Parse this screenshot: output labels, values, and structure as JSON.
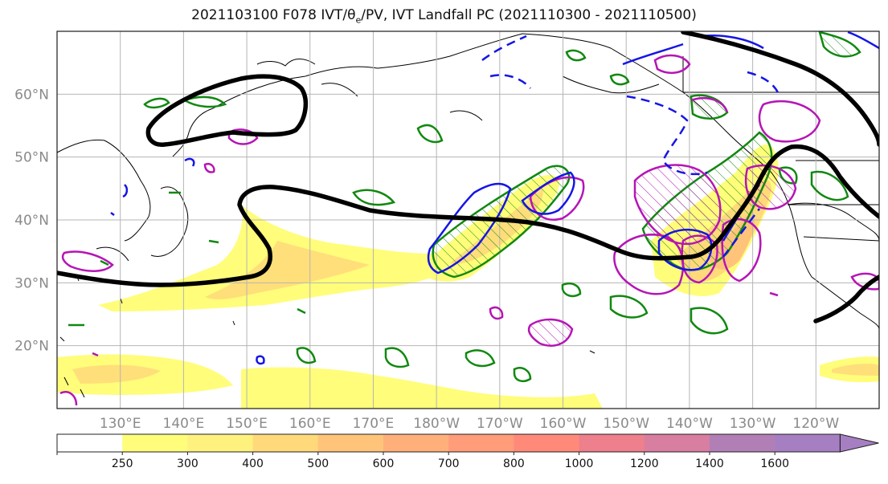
{
  "header": {
    "title_prefix": "2021103100 F078 IVT/θ",
    "title_sub": "e",
    "title_suffix": "/PV, IVT Landfall PC (2021110300 - 2021110500)"
  },
  "map": {
    "projection": "equirectangular",
    "lon_range": [
      120,
      250
    ],
    "lat_range": [
      10,
      70
    ],
    "lat_labels": [
      "60°N",
      "50°N",
      "40°N",
      "30°N",
      "20°N"
    ],
    "lat_values": [
      60,
      50,
      40,
      30,
      20
    ],
    "lon_labels": [
      "130°E",
      "140°E",
      "150°E",
      "160°E",
      "170°E",
      "180°W",
      "170°W",
      "160°W",
      "150°W",
      "140°W",
      "130°W",
      "120°W"
    ],
    "lon_values": [
      130,
      140,
      150,
      160,
      170,
      180,
      190,
      200,
      210,
      220,
      230,
      240
    ],
    "gridlines": true,
    "layers": {
      "ivt_fill": "IVT shaded (kg m-1 s-1)",
      "pv_contour_color": "#000000",
      "theta_e_contour_color": "#118811",
      "positive_contour_color": "#b515b5",
      "negative_contour_color": "#1515e6"
    }
  },
  "colorbar": {
    "ticks": [
      "250",
      "300",
      "400",
      "500",
      "600",
      "700",
      "800",
      "1000",
      "1200",
      "1400",
      "1600"
    ],
    "colors": [
      "#ffffff",
      "#fffd7a",
      "#fff17e",
      "#ffd97a",
      "#ffc47a",
      "#ffb07a",
      "#ff9c7a",
      "#ff8a7a",
      "#ee7f8c",
      "#d87ea0",
      "#b17fb6",
      "#a67fc2"
    ],
    "extend": "max"
  }
}
